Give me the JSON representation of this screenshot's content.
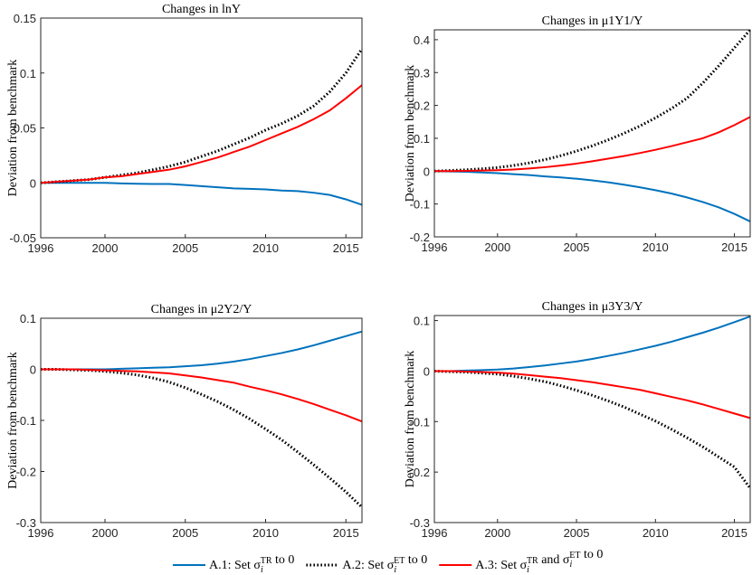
{
  "chart_data": [
    {
      "type": "line",
      "title": "Changes in lnY",
      "ylabel": "Deviation from benchmark",
      "x": [
        1996,
        1997,
        1998,
        1999,
        2000,
        2001,
        2002,
        2003,
        2004,
        2005,
        2006,
        2007,
        2008,
        2009,
        2010,
        2011,
        2012,
        2013,
        2014,
        2015,
        2016
      ],
      "xlim": [
        1996,
        2016
      ],
      "xticks": [
        1996,
        2000,
        2005,
        2010,
        2015
      ],
      "ylim": [
        -0.05,
        0.15
      ],
      "yticks": [
        -0.05,
        0,
        0.05,
        0.1,
        0.15
      ],
      "series": [
        {
          "color": "#0072bd",
          "style": "solid",
          "values": [
            0,
            0,
            0,
            0,
            0,
            -0.0005,
            -0.0008,
            -0.001,
            -0.001,
            -0.002,
            -0.003,
            -0.004,
            -0.005,
            -0.0055,
            -0.006,
            -0.007,
            -0.0075,
            -0.009,
            -0.011,
            -0.015,
            -0.02
          ]
        },
        {
          "color": "#000000",
          "style": "dotted",
          "values": [
            0,
            0.001,
            0.002,
            0.003,
            0.005,
            0.007,
            0.009,
            0.012,
            0.015,
            0.019,
            0.024,
            0.029,
            0.035,
            0.041,
            0.048,
            0.054,
            0.061,
            0.07,
            0.083,
            0.1,
            0.122
          ]
        },
        {
          "color": "#ff0000",
          "style": "solid",
          "values": [
            0,
            0.001,
            0.002,
            0.003,
            0.005,
            0.006,
            0.008,
            0.01,
            0.012,
            0.015,
            0.019,
            0.023,
            0.028,
            0.033,
            0.039,
            0.045,
            0.051,
            0.058,
            0.066,
            0.077,
            0.089
          ]
        }
      ]
    },
    {
      "type": "line",
      "title": "Changes in μ1Y1/Y",
      "ylabel": "Deviation from benchmark",
      "x": [
        1996,
        1997,
        1998,
        1999,
        2000,
        2001,
        2002,
        2003,
        2004,
        2005,
        2006,
        2007,
        2008,
        2009,
        2010,
        2011,
        2012,
        2013,
        2014,
        2015,
        2016
      ],
      "xlim": [
        1996,
        2016
      ],
      "xticks": [
        1996,
        2000,
        2005,
        2010,
        2015
      ],
      "ylim": [
        -0.2,
        0.43
      ],
      "yticks": [
        -0.2,
        -0.1,
        0,
        0.1,
        0.2,
        0.3,
        0.4
      ],
      "series": [
        {
          "color": "#0072bd",
          "style": "solid",
          "values": [
            0,
            -0.001,
            -0.002,
            -0.004,
            -0.006,
            -0.009,
            -0.012,
            -0.016,
            -0.019,
            -0.023,
            -0.028,
            -0.034,
            -0.041,
            -0.049,
            -0.058,
            -0.068,
            -0.08,
            -0.094,
            -0.11,
            -0.13,
            -0.153
          ]
        },
        {
          "color": "#000000",
          "style": "dotted",
          "values": [
            0,
            0.002,
            0.004,
            0.007,
            0.011,
            0.017,
            0.025,
            0.035,
            0.047,
            0.061,
            0.077,
            0.095,
            0.115,
            0.137,
            0.162,
            0.19,
            0.222,
            0.268,
            0.32,
            0.375,
            0.43
          ]
        },
        {
          "color": "#ff0000",
          "style": "solid",
          "values": [
            0,
            0,
            0.001,
            0.002,
            0.003,
            0.005,
            0.008,
            0.012,
            0.017,
            0.023,
            0.03,
            0.038,
            0.046,
            0.055,
            0.065,
            0.076,
            0.088,
            0.1,
            0.118,
            0.14,
            0.165
          ]
        }
      ]
    },
    {
      "type": "line",
      "title": "Changes in μ2Y2/Y",
      "ylabel": "Deviation from benchmark",
      "x": [
        1996,
        1997,
        1998,
        1999,
        2000,
        2001,
        2002,
        2003,
        2004,
        2005,
        2006,
        2007,
        2008,
        2009,
        2010,
        2011,
        2012,
        2013,
        2014,
        2015,
        2016
      ],
      "xlim": [
        1996,
        2016
      ],
      "xticks": [
        1996,
        2000,
        2005,
        2010,
        2015
      ],
      "ylim": [
        -0.3,
        0.1
      ],
      "yticks": [
        -0.3,
        -0.2,
        -0.1,
        0,
        0.1
      ],
      "series": [
        {
          "color": "#0072bd",
          "style": "solid",
          "values": [
            0,
            0,
            0,
            0,
            0,
            0.001,
            0.002,
            0.003,
            0.004,
            0.006,
            0.008,
            0.011,
            0.015,
            0.02,
            0.026,
            0.032,
            0.039,
            0.047,
            0.056,
            0.065,
            0.074
          ]
        },
        {
          "color": "#000000",
          "style": "dotted",
          "values": [
            0,
            0,
            -0.001,
            -0.002,
            -0.004,
            -0.007,
            -0.011,
            -0.017,
            -0.025,
            -0.036,
            -0.049,
            -0.063,
            -0.079,
            -0.097,
            -0.117,
            -0.138,
            -0.162,
            -0.187,
            -0.213,
            -0.24,
            -0.27
          ]
        },
        {
          "color": "#ff0000",
          "style": "solid",
          "values": [
            0,
            0,
            0,
            -0.001,
            -0.002,
            -0.003,
            -0.004,
            -0.006,
            -0.008,
            -0.012,
            -0.016,
            -0.021,
            -0.026,
            -0.034,
            -0.041,
            -0.049,
            -0.058,
            -0.068,
            -0.079,
            -0.09,
            -0.102
          ]
        }
      ]
    },
    {
      "type": "line",
      "title": "Changes in μ3Y3/Y",
      "ylabel": "Deviation from benchmark",
      "x": [
        1996,
        1997,
        1998,
        1999,
        2000,
        2001,
        2002,
        2003,
        2004,
        2005,
        2006,
        2007,
        2008,
        2009,
        2010,
        2011,
        2012,
        2013,
        2014,
        2015,
        2016
      ],
      "xlim": [
        1996,
        2016
      ],
      "xticks": [
        1996,
        2000,
        2005,
        2010,
        2015
      ],
      "ylim": [
        -0.3,
        0.11
      ],
      "yticks": [
        -0.3,
        -0.2,
        -0.1,
        0,
        0.1
      ],
      "series": [
        {
          "color": "#0072bd",
          "style": "solid",
          "values": [
            0,
            0,
            0.001,
            0.002,
            0.003,
            0.005,
            0.008,
            0.011,
            0.015,
            0.019,
            0.024,
            0.03,
            0.036,
            0.043,
            0.05,
            0.058,
            0.067,
            0.076,
            0.086,
            0.097,
            0.108
          ]
        },
        {
          "color": "#000000",
          "style": "dotted",
          "values": [
            0,
            -0.001,
            -0.002,
            -0.004,
            -0.006,
            -0.01,
            -0.015,
            -0.021,
            -0.029,
            -0.038,
            -0.048,
            -0.059,
            -0.071,
            -0.085,
            -0.099,
            -0.115,
            -0.132,
            -0.15,
            -0.17,
            -0.19,
            -0.232
          ]
        },
        {
          "color": "#ff0000",
          "style": "solid",
          "values": [
            0,
            0,
            -0.001,
            -0.002,
            -0.003,
            -0.005,
            -0.008,
            -0.011,
            -0.014,
            -0.018,
            -0.022,
            -0.027,
            -0.032,
            -0.037,
            -0.044,
            -0.051,
            -0.058,
            -0.066,
            -0.075,
            -0.084,
            -0.093
          ]
        }
      ]
    }
  ],
  "legend": {
    "entries": [
      {
        "parts": [
          {
            "text": "A.1: Set σ"
          },
          {
            "sub": "i"
          },
          {
            "sup": "TR"
          },
          {
            "text": " to 0"
          }
        ]
      },
      {
        "parts": [
          {
            "text": "A.2: Set σ"
          },
          {
            "sub": "i"
          },
          {
            "sup": "ET"
          },
          {
            "text": " to 0"
          }
        ]
      },
      {
        "parts": [
          {
            "text": "A.3: Set σ"
          },
          {
            "sub": "i"
          },
          {
            "sup": "TR"
          },
          {
            "text": " and σ"
          },
          {
            "sub": "i"
          },
          {
            "sup": "ET"
          },
          {
            "text": " to 0"
          }
        ]
      }
    ]
  }
}
